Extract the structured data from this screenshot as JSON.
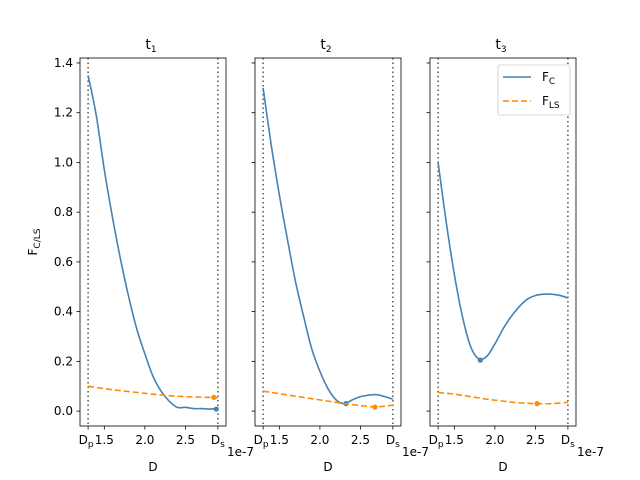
{
  "chart_data": {
    "type": "line",
    "ylabel": "F",
    "ylabel_sub": "C/LS",
    "xlabel": "D",
    "x_offset_label": "1e-7",
    "x_tick_labels": [
      {
        "value": 1.5,
        "label": "1.5"
      },
      {
        "value": 2.0,
        "label": "2.0"
      },
      {
        "value": 2.5,
        "label": "2.5"
      }
    ],
    "dp_label": "D",
    "dp_sub": "p",
    "ds_label": "D",
    "ds_sub": "s",
    "y_ticks": [
      {
        "value": 0.0,
        "label": "0.0"
      },
      {
        "value": 0.2,
        "label": "0.2"
      },
      {
        "value": 0.4,
        "label": "0.4"
      },
      {
        "value": 0.6,
        "label": "0.6"
      },
      {
        "value": 0.8,
        "label": "0.8"
      },
      {
        "value": 1.0,
        "label": "1.0"
      },
      {
        "value": 1.2,
        "label": "1.2"
      },
      {
        "value": 1.4,
        "label": "1.4"
      }
    ],
    "xlim": [
      1.2,
      3.0
    ],
    "ylim": [
      -0.06,
      1.42
    ],
    "dp": 1.3,
    "ds": 2.9,
    "colors": {
      "fc": "#4682b4",
      "fls": "#ff8c00",
      "vline": "#555555"
    },
    "legend": {
      "position": "top-right",
      "entries": [
        {
          "label": "F",
          "sub": "C",
          "style": "solid"
        },
        {
          "label": "F",
          "sub": "LS",
          "style": "dashed"
        }
      ]
    },
    "panels": [
      {
        "title": "t",
        "title_sub": "1",
        "series": [
          {
            "name": "F_C",
            "x": [
              1.3,
              1.4,
              1.5,
              1.6,
              1.7,
              1.8,
              1.9,
              2.0,
              2.1,
              2.2,
              2.3,
              2.4,
              2.5,
              2.6,
              2.7,
              2.8,
              2.9
            ],
            "y": [
              1.35,
              1.19,
              0.97,
              0.78,
              0.61,
              0.46,
              0.33,
              0.23,
              0.14,
              0.08,
              0.04,
              0.015,
              0.015,
              0.01,
              0.01,
              0.008,
              0.01
            ],
            "min_point": [
              2.88,
              0.008
            ]
          },
          {
            "name": "F_LS",
            "x": [
              1.3,
              1.5,
              1.7,
              1.9,
              2.1,
              2.3,
              2.5,
              2.7,
              2.9
            ],
            "y": [
              0.1,
              0.09,
              0.082,
              0.075,
              0.068,
              0.062,
              0.058,
              0.056,
              0.054
            ],
            "min_point": [
              2.85,
              0.055
            ]
          }
        ]
      },
      {
        "title": "t",
        "title_sub": "2",
        "series": [
          {
            "name": "F_C",
            "x": [
              1.3,
              1.4,
              1.5,
              1.6,
              1.7,
              1.8,
              1.9,
              2.0,
              2.1,
              2.2,
              2.3,
              2.4,
              2.5,
              2.6,
              2.7,
              2.8,
              2.9
            ],
            "y": [
              1.3,
              1.07,
              0.87,
              0.69,
              0.52,
              0.38,
              0.25,
              0.16,
              0.09,
              0.045,
              0.03,
              0.045,
              0.058,
              0.064,
              0.066,
              0.058,
              0.048
            ],
            "min_point": [
              2.32,
              0.03
            ]
          },
          {
            "name": "F_LS",
            "x": [
              1.3,
              1.5,
              1.7,
              1.9,
              2.1,
              2.3,
              2.5,
              2.7,
              2.9
            ],
            "y": [
              0.08,
              0.07,
              0.06,
              0.05,
              0.04,
              0.03,
              0.022,
              0.017,
              0.024
            ],
            "min_point": [
              2.68,
              0.016
            ]
          }
        ]
      },
      {
        "title": "t",
        "title_sub": "3",
        "series": [
          {
            "name": "F_C",
            "x": [
              1.3,
              1.4,
              1.5,
              1.6,
              1.7,
              1.8,
              1.9,
              2.0,
              2.1,
              2.2,
              2.3,
              2.4,
              2.5,
              2.6,
              2.7,
              2.8,
              2.9
            ],
            "y": [
              1.0,
              0.76,
              0.55,
              0.38,
              0.26,
              0.21,
              0.22,
              0.27,
              0.33,
              0.38,
              0.42,
              0.45,
              0.465,
              0.47,
              0.47,
              0.465,
              0.455
            ],
            "min_point": [
              1.82,
              0.205
            ]
          },
          {
            "name": "F_LS",
            "x": [
              1.3,
              1.5,
              1.7,
              1.9,
              2.1,
              2.3,
              2.5,
              2.7,
              2.9
            ],
            "y": [
              0.075,
              0.068,
              0.058,
              0.048,
              0.04,
              0.033,
              0.03,
              0.03,
              0.035
            ],
            "min_point": [
              2.52,
              0.03
            ]
          }
        ]
      }
    ]
  }
}
